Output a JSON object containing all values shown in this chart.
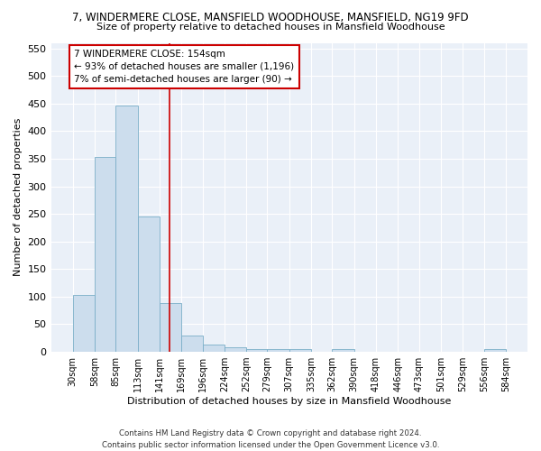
{
  "title": "7, WINDERMERE CLOSE, MANSFIELD WOODHOUSE, MANSFIELD, NG19 9FD",
  "subtitle": "Size of property relative to detached houses in Mansfield Woodhouse",
  "xlabel": "Distribution of detached houses by size in Mansfield Woodhouse",
  "ylabel": "Number of detached properties",
  "bar_color": "#ccdded",
  "bar_edge_color": "#7aaec8",
  "background_color": "#eaf0f8",
  "fig_background": "#ffffff",
  "grid_color": "#ffffff",
  "vline_x": 154,
  "vline_color": "#cc0000",
  "bin_edges": [
    30,
    58,
    85,
    113,
    141,
    169,
    196,
    224,
    252,
    279,
    307,
    335,
    362,
    390,
    418,
    446,
    473,
    501,
    529,
    556,
    584
  ],
  "bin_heights": [
    103,
    353,
    447,
    246,
    88,
    30,
    14,
    9,
    5,
    5,
    5,
    0,
    5,
    0,
    0,
    0,
    0,
    0,
    0,
    5
  ],
  "ylim": [
    0,
    560
  ],
  "yticks": [
    0,
    50,
    100,
    150,
    200,
    250,
    300,
    350,
    400,
    450,
    500,
    550
  ],
  "annotation_lines": [
    "7 WINDERMERE CLOSE: 154sqm",
    "← 93% of detached houses are smaller (1,196)",
    "7% of semi-detached houses are larger (90) →"
  ],
  "footer1": "Contains HM Land Registry data © Crown copyright and database right 2024.",
  "footer2": "Contains public sector information licensed under the Open Government Licence v3.0."
}
